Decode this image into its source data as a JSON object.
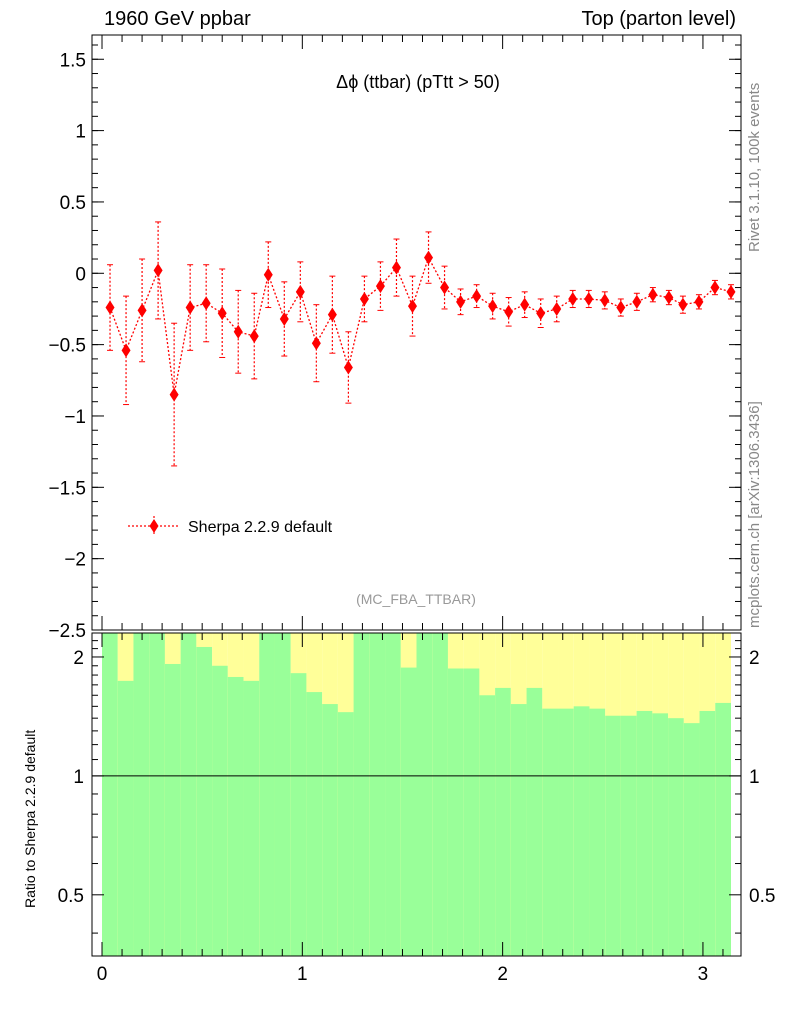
{
  "header": {
    "left": "1960 GeV ppbar",
    "right": "Top (parton level)"
  },
  "side_labels": {
    "rivet": "Rivet 3.1.10,  100k events",
    "mcplots": "mcplots.cern.ch [arXiv:1306.3436]"
  },
  "ratio_ylabel": "Ratio to Sherpa 2.2.9 default",
  "colors": {
    "series": "#ff0000",
    "band_inner": "#99ff99",
    "band_outer": "#ffff99"
  },
  "chart_data": {
    "type": "scatter",
    "title": "Δϕ (ttbar) (pTtt > 50)",
    "annotation": "(MC_FBA_TTBAR)",
    "legend_placement": "bottom-left",
    "xlim": [
      -0.05,
      3.19
    ],
    "ylim": [
      -2.5,
      1.67
    ],
    "x_ticks": [
      "0",
      "1",
      "2",
      "3"
    ],
    "y_ticks": [
      "1.5",
      "1",
      "0.5",
      "0",
      "−0.5",
      "−1",
      "−1.5",
      "−2",
      "−2.5"
    ],
    "series": [
      {
        "name": "Sherpa 2.2.9 default",
        "x": [
          0.04,
          0.12,
          0.2,
          0.28,
          0.36,
          0.44,
          0.52,
          0.6,
          0.68,
          0.76,
          0.83,
          0.91,
          0.99,
          1.07,
          1.15,
          1.23,
          1.31,
          1.39,
          1.47,
          1.55,
          1.63,
          1.71,
          1.79,
          1.87,
          1.95,
          2.03,
          2.11,
          2.19,
          2.27,
          2.35,
          2.43,
          2.51,
          2.59,
          2.67,
          2.75,
          2.83,
          2.9,
          2.98,
          3.06,
          3.14
        ],
        "y": [
          -0.24,
          -0.54,
          -0.26,
          0.02,
          -0.85,
          -0.24,
          -0.21,
          -0.28,
          -0.41,
          -0.44,
          -0.01,
          -0.32,
          -0.13,
          -0.49,
          -0.29,
          -0.66,
          -0.18,
          -0.09,
          0.04,
          -0.23,
          0.11,
          -0.1,
          -0.2,
          -0.16,
          -0.23,
          -0.27,
          -0.22,
          -0.28,
          -0.25,
          -0.18,
          -0.18,
          -0.19,
          -0.24,
          -0.2,
          -0.15,
          -0.17,
          -0.22,
          -0.2,
          -0.1,
          -0.13
        ],
        "yerr": [
          0.3,
          0.38,
          0.36,
          0.34,
          0.5,
          0.3,
          0.27,
          0.31,
          0.29,
          0.3,
          0.23,
          0.26,
          0.21,
          0.27,
          0.27,
          0.25,
          0.16,
          0.17,
          0.2,
          0.21,
          0.18,
          0.15,
          0.09,
          0.08,
          0.09,
          0.1,
          0.09,
          0.1,
          0.09,
          0.06,
          0.06,
          0.06,
          0.06,
          0.06,
          0.05,
          0.05,
          0.06,
          0.05,
          0.05,
          0.05
        ]
      }
    ],
    "ratio": {
      "ylim": [
        0.35,
        2.3
      ],
      "y_ticks": [
        "0.5",
        "1",
        "2"
      ],
      "reference": 1,
      "bin_edges": [
        0.0,
        0.0785,
        0.157,
        0.2355,
        0.314,
        0.3925,
        0.471,
        0.5495,
        0.628,
        0.7065,
        0.785,
        0.8635,
        0.942,
        1.0205,
        1.099,
        1.1775,
        1.256,
        1.3345,
        1.413,
        1.4915,
        1.57,
        1.6485,
        1.727,
        1.8055,
        1.884,
        1.9625,
        2.041,
        2.1195,
        2.198,
        2.2765,
        2.355,
        2.4335,
        2.512,
        2.5905,
        2.669,
        2.7475,
        2.826,
        2.9045,
        2.983,
        3.0615,
        3.14
      ],
      "green_hi": [
        2.4,
        1.74,
        2.4,
        2.4,
        1.92,
        2.4,
        2.12,
        1.9,
        1.78,
        1.74,
        2.4,
        2.4,
        1.82,
        1.63,
        1.52,
        1.45,
        2.4,
        2.4,
        2.4,
        1.88,
        2.4,
        2.4,
        1.87,
        1.87,
        1.6,
        1.67,
        1.52,
        1.67,
        1.48,
        1.48,
        1.5,
        1.48,
        1.42,
        1.42,
        1.46,
        1.44,
        1.4,
        1.36,
        1.46,
        1.53
      ],
      "green_lo": [
        0.35,
        0.35,
        0.35,
        0.35,
        0.35,
        0.35,
        0.35,
        0.35,
        0.35,
        0.35,
        0.35,
        0.35,
        0.35,
        0.35,
        0.35,
        0.35,
        0.35,
        0.35,
        0.35,
        0.35,
        0.35,
        0.35,
        0.35,
        0.35,
        0.35,
        0.35,
        0.35,
        0.35,
        0.35,
        0.35,
        0.35,
        0.35,
        0.35,
        0.35,
        0.35,
        0.35,
        0.35,
        0.35,
        0.35,
        0.35
      ],
      "yellow_hi": [
        2.4,
        2.4,
        2.4,
        2.4,
        2.4,
        2.4,
        2.4,
        2.4,
        2.4,
        2.4,
        2.4,
        2.4,
        2.4,
        2.4,
        2.4,
        2.4,
        2.4,
        2.4,
        2.4,
        2.4,
        2.4,
        2.4,
        2.4,
        2.4,
        2.4,
        2.4,
        2.4,
        2.4,
        2.4,
        2.4,
        2.4,
        2.4,
        2.4,
        2.4,
        2.4,
        2.4,
        2.4,
        2.4,
        2.4,
        2.4
      ],
      "yellow_lo": [
        0.35,
        0.35,
        0.35,
        0.35,
        0.35,
        0.35,
        0.35,
        0.35,
        0.35,
        0.35,
        0.35,
        0.35,
        0.35,
        0.35,
        0.35,
        0.35,
        0.35,
        0.35,
        0.35,
        0.35,
        0.35,
        0.35,
        0.35,
        0.35,
        0.35,
        0.35,
        0.35,
        0.35,
        0.35,
        0.35,
        0.35,
        0.35,
        0.35,
        0.35,
        0.35,
        0.35,
        0.35,
        0.35,
        0.35,
        0.35
      ]
    }
  }
}
